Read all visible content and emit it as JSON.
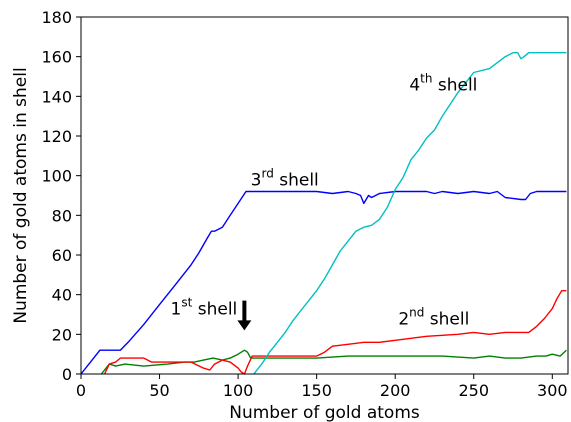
{
  "chart_data": {
    "type": "line",
    "xlabel": "Number of gold atoms",
    "ylabel": "Number of gold atoms in shell",
    "xlim": [
      0,
      310
    ],
    "ylim": [
      0,
      180
    ],
    "xticks": [
      0,
      50,
      100,
      150,
      200,
      250,
      300
    ],
    "yticks": [
      0,
      20,
      40,
      60,
      80,
      100,
      120,
      140,
      160,
      180
    ],
    "grid": false,
    "legend": "none",
    "series": [
      {
        "key": "shell1",
        "color": "#008000",
        "x": [
          13,
          16,
          18,
          22,
          28,
          40,
          55,
          66,
          72,
          78,
          84,
          90,
          95,
          100,
          104,
          106,
          108,
          115,
          130,
          150,
          170,
          190,
          200,
          210,
          230,
          250,
          260,
          270,
          280,
          290,
          296,
          300,
          305,
          309
        ],
        "y": [
          0,
          3,
          5,
          4,
          5,
          4,
          5,
          6,
          6,
          7,
          8,
          7,
          8,
          10,
          12,
          11,
          8,
          8,
          8,
          8,
          9,
          9,
          9,
          9,
          9,
          8,
          9,
          8,
          8,
          9,
          9,
          10,
          9,
          12
        ]
      },
      {
        "key": "shell2",
        "color": "#ff0000",
        "x": [
          15,
          18,
          22,
          25,
          30,
          40,
          45,
          48,
          55,
          70,
          78,
          82,
          85,
          90,
          95,
          100,
          102,
          104,
          106,
          109,
          115,
          130,
          150,
          155,
          160,
          170,
          180,
          190,
          200,
          210,
          220,
          240,
          250,
          260,
          270,
          280,
          285,
          290,
          295,
          300,
          303,
          306,
          309
        ],
        "y": [
          0,
          5,
          6,
          8,
          8,
          8,
          6,
          6,
          6,
          6,
          3,
          2,
          5,
          7,
          6,
          3,
          1,
          0,
          4,
          9,
          9,
          9,
          9,
          11,
          14,
          15,
          16,
          16,
          17,
          18,
          19,
          20,
          21,
          20,
          21,
          21,
          21,
          24,
          28,
          33,
          38,
          42,
          42
        ]
      },
      {
        "key": "shell3",
        "color": "#0000ff",
        "x": [
          0,
          5,
          12,
          20,
          25,
          30,
          40,
          50,
          60,
          70,
          75,
          80,
          83,
          85,
          90,
          95,
          100,
          105,
          110,
          120,
          130,
          140,
          150,
          160,
          170,
          175,
          178,
          180,
          183,
          185,
          190,
          200,
          210,
          220,
          225,
          230,
          240,
          250,
          260,
          265,
          270,
          280,
          283,
          286,
          290,
          300,
          309
        ],
        "y": [
          0,
          5,
          12,
          12,
          12,
          16,
          25,
          35,
          45,
          55,
          61,
          68,
          72,
          72,
          74,
          80,
          86,
          92,
          92,
          92,
          92,
          92,
          92,
          91,
          92,
          91,
          90,
          86,
          90,
          89,
          91,
          92,
          92,
          92,
          91,
          92,
          91,
          92,
          91,
          92,
          89,
          88,
          88,
          91,
          92,
          92,
          92
        ]
      },
      {
        "key": "shell4",
        "color": "#00bfbf",
        "x": [
          110,
          115,
          120,
          125,
          130,
          135,
          140,
          145,
          150,
          155,
          160,
          165,
          170,
          175,
          180,
          185,
          190,
          195,
          200,
          205,
          210,
          215,
          220,
          225,
          230,
          240,
          250,
          260,
          270,
          275,
          278,
          280,
          282,
          285,
          290,
          300,
          309
        ],
        "y": [
          0,
          5,
          11,
          16,
          21,
          27,
          32,
          37,
          42,
          48,
          55,
          62,
          67,
          72,
          74,
          75,
          78,
          84,
          93,
          99,
          108,
          113,
          119,
          123,
          130,
          142,
          152,
          154,
          160,
          162,
          162,
          159,
          160,
          162,
          162,
          162,
          162
        ]
      }
    ],
    "annotations": [
      {
        "key": "label1",
        "text": "1",
        "sup": "st",
        "rest": " shell",
        "x": 57,
        "y": 30
      },
      {
        "key": "label2",
        "text": "2",
        "sup": "nd",
        "rest": " shell",
        "x": 202,
        "y": 25
      },
      {
        "key": "label3",
        "text": "3",
        "sup": "rd",
        "rest": " shell",
        "x": 108,
        "y": 95
      },
      {
        "key": "label4",
        "text": "4",
        "sup": "th",
        "rest": " shell",
        "x": 209,
        "y": 143
      }
    ],
    "arrow": {
      "x": 104,
      "y_start": 37,
      "y_end": 22
    }
  }
}
